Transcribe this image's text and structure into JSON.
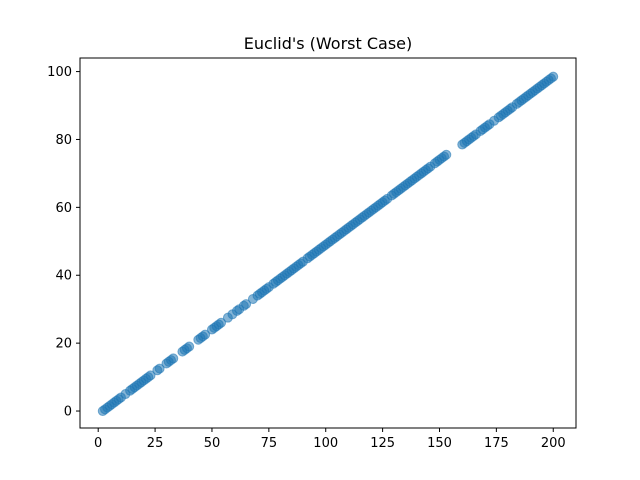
{
  "chart_data": {
    "type": "scatter",
    "title": "Euclid's (Worst Case)",
    "xlabel": "",
    "ylabel": "",
    "xlim": [
      -8,
      210
    ],
    "ylim": [
      -5,
      104
    ],
    "xticks": [
      0,
      25,
      50,
      75,
      100,
      125,
      150,
      175,
      200
    ],
    "yticks": [
      0,
      20,
      40,
      60,
      80,
      100
    ],
    "grid": false,
    "marker_color": "#1f77b4",
    "marker_alpha": 0.55,
    "series": [
      {
        "x": [
          2,
          3,
          4,
          5,
          6,
          7,
          8,
          9,
          10,
          12,
          14,
          15,
          16,
          17,
          18,
          19,
          20,
          21,
          22,
          23,
          26,
          27,
          30,
          31,
          32,
          33,
          37,
          38,
          39,
          40,
          44,
          45,
          46,
          47,
          50,
          51,
          52,
          53,
          54,
          57,
          59,
          61,
          62,
          64,
          65,
          68,
          70,
          71,
          72,
          73,
          74,
          75,
          77,
          78,
          79,
          80,
          81,
          82,
          83,
          84,
          85,
          86,
          87,
          88,
          89,
          90,
          92,
          93,
          94,
          95,
          96,
          97,
          98,
          99,
          100,
          101,
          102,
          103,
          104,
          105,
          106,
          107,
          108,
          109,
          110,
          111,
          112,
          113,
          114,
          115,
          116,
          117,
          118,
          119,
          120,
          121,
          122,
          123,
          124,
          125,
          126,
          127,
          129,
          130,
          131,
          132,
          133,
          134,
          135,
          136,
          137,
          138,
          139,
          140,
          141,
          142,
          143,
          144,
          145,
          146,
          148,
          149,
          150,
          151,
          152,
          153,
          160,
          161,
          162,
          163,
          164,
          165,
          166,
          168,
          169,
          170,
          171,
          172,
          174,
          176,
          177,
          178,
          179,
          180,
          181,
          182,
          184,
          185,
          186,
          187,
          188,
          189,
          190,
          191,
          192,
          193,
          194,
          195,
          196,
          197,
          198,
          199,
          200
        ],
        "y": [
          0,
          0.5,
          1,
          1.5,
          2,
          2.5,
          3,
          3.5,
          4,
          5,
          6,
          6.5,
          7,
          7.5,
          8,
          8.5,
          9,
          9.5,
          10,
          10.5,
          12,
          12.5,
          14,
          14.5,
          15,
          15.5,
          17.5,
          18,
          18.5,
          19,
          21,
          21.5,
          22,
          22.5,
          24,
          24.5,
          25,
          25.5,
          26,
          27.5,
          28.5,
          29.5,
          30,
          31,
          31.5,
          33,
          34,
          34.5,
          35,
          35.5,
          36,
          36.5,
          37.5,
          38,
          38.5,
          39,
          39.5,
          40,
          40.5,
          41,
          41.5,
          42,
          42.5,
          43,
          43.5,
          44,
          45,
          45.5,
          46,
          46.5,
          47,
          47.5,
          48,
          48.5,
          49,
          49.5,
          50,
          50.5,
          51,
          51.5,
          52,
          52.5,
          53,
          53.5,
          54,
          54.5,
          55,
          55.5,
          56,
          56.5,
          57,
          57.5,
          58,
          58.5,
          59,
          59.5,
          60,
          60.5,
          61,
          61.5,
          62,
          62.5,
          63.5,
          64,
          64.5,
          65,
          65.5,
          66,
          66.5,
          67,
          67.5,
          68,
          68.5,
          69,
          69.5,
          70,
          70.5,
          71,
          71.5,
          72,
          73,
          73.5,
          74,
          74.5,
          75,
          75.5,
          78.5,
          79,
          79.5,
          80,
          80.5,
          81,
          81.5,
          82.5,
          83,
          83.5,
          84,
          84.5,
          85.5,
          86.5,
          87,
          87.5,
          88,
          88.5,
          89,
          89.5,
          90.5,
          91,
          91.5,
          92,
          92.5,
          93,
          93.5,
          94,
          94.5,
          95,
          95.5,
          96,
          96.5,
          97,
          97.5,
          98,
          98.5
        ]
      }
    ]
  }
}
